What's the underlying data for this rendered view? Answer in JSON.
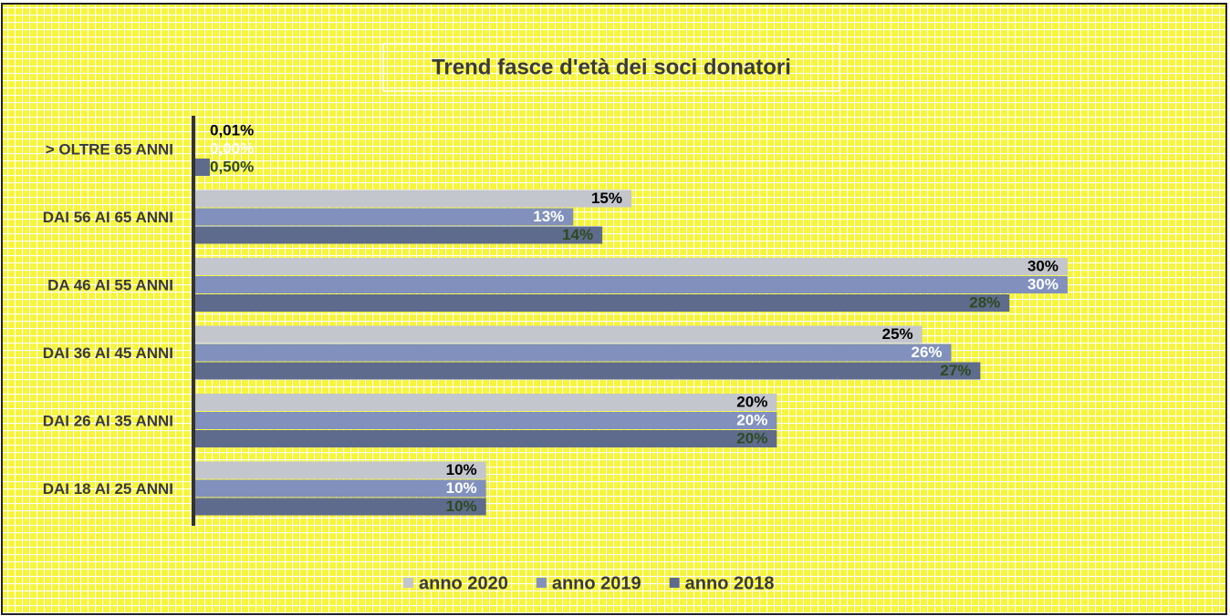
{
  "chart_data": {
    "type": "hbar",
    "title": "Trend fasce d'età dei soci donatori",
    "categories": [
      "> OLTRE 65 ANNI",
      "DAI 56 AI 65 ANNI",
      "DA 46 AI 55 ANNI",
      "DAI 36 AI 45 ANNI",
      "DAI 26 AI 35 ANNI",
      "DAI 18 AI 25 ANNI"
    ],
    "series": [
      {
        "name": "anno 2020",
        "color": "#c3c6cd",
        "label_color": "#000000",
        "values": [
          0.01,
          15,
          30,
          25,
          20,
          10
        ],
        "value_labels": [
          "0,01%",
          "15%",
          "30%",
          "25%",
          "20%",
          "10%"
        ]
      },
      {
        "name": "anno 2019",
        "color": "#8190bd",
        "label_color": "#ffffff",
        "values": [
          0,
          13,
          30,
          26,
          20,
          10
        ],
        "value_labels": [
          "0,00%",
          "13%",
          "30%",
          "26%",
          "20%",
          "10%"
        ]
      },
      {
        "name": "anno 2018",
        "color": "#5e6b8c",
        "label_color": "#2e4a1f",
        "values": [
          0.5,
          14,
          28,
          27,
          20,
          10
        ],
        "value_labels": [
          "0,50%",
          "14%",
          "28%",
          "27%",
          "20%",
          "10%"
        ]
      }
    ],
    "legend": "bottom"
  }
}
